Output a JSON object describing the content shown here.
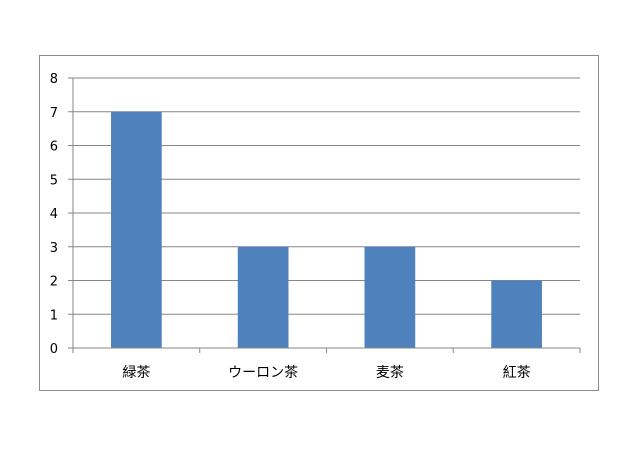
{
  "chart_data": {
    "type": "bar",
    "categories": [
      "緑茶",
      "ウーロン茶",
      "麦茶",
      "紅茶"
    ],
    "values": [
      7,
      3,
      3,
      2
    ],
    "title": "",
    "xlabel": "",
    "ylabel": "",
    "ylim": [
      0,
      8
    ],
    "yticks": [
      0,
      1,
      2,
      3,
      4,
      5,
      6,
      7,
      8
    ],
    "grid": true,
    "legend": "none",
    "bar_color": "#4f81bd",
    "grid_color": "#868686"
  }
}
